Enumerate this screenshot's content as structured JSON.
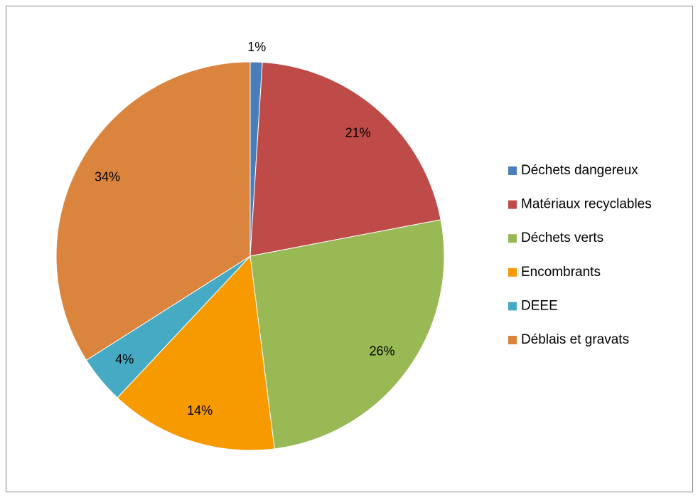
{
  "chart_data": {
    "type": "pie",
    "categories": [
      "Déchets dangereux",
      "Matériaux recyclables",
      "Déchets verts",
      "Encombrants",
      "DEEE",
      "Déblais et gravats"
    ],
    "values": [
      1,
      21,
      26,
      14,
      4,
      34
    ],
    "value_labels": [
      "1%",
      "21%",
      "26%",
      "14%",
      "4%",
      "34%"
    ],
    "colors": [
      "#4a7ebb",
      "#be4b48",
      "#98b954",
      "#f79a00",
      "#46aac5",
      "#db843d"
    ],
    "legend": "right"
  }
}
